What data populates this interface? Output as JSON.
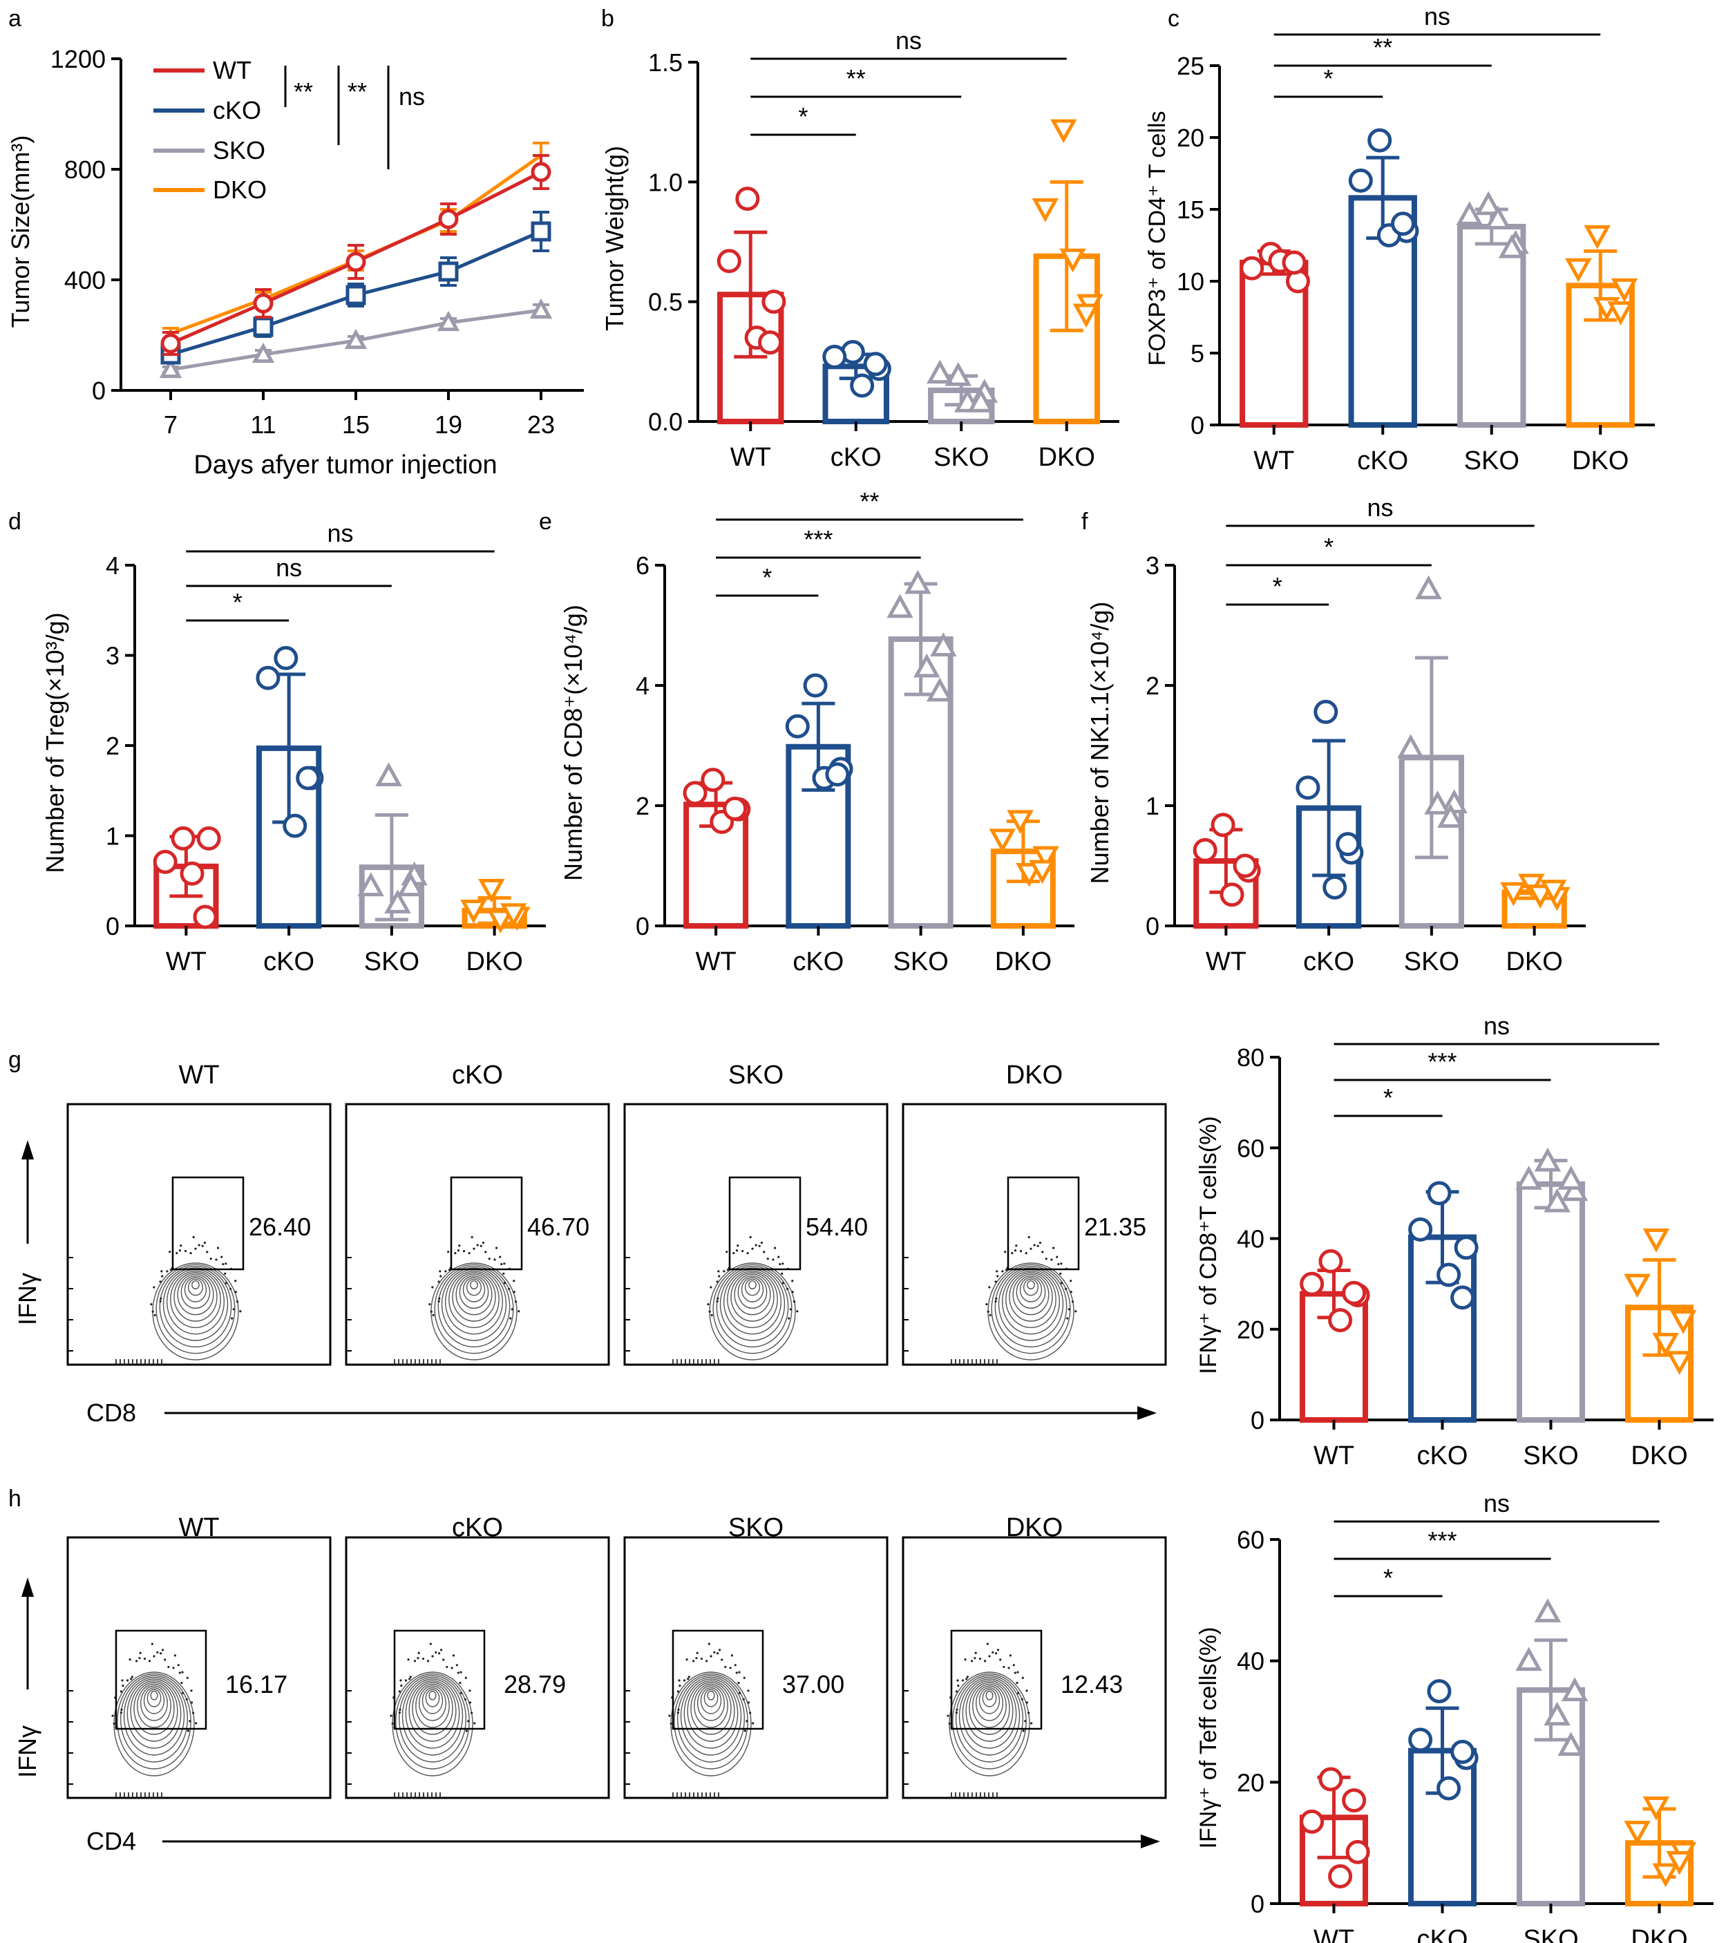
{
  "colors": {
    "WT": "#d62728",
    "cKO": "#1f4e8c",
    "SKO": "#9e9aac",
    "DKO": "#ff8c00",
    "axis": "#000000"
  },
  "chart_data": [
    {
      "id": "a",
      "type": "line",
      "panel_label": "a",
      "xlabel": "Days afyer tumor injection",
      "ylabel": "Tumor Size(mm³)",
      "x": [
        7,
        11,
        15,
        19,
        23
      ],
      "ylim": [
        0,
        1200
      ],
      "yticks": [
        0,
        400,
        800,
        1200
      ],
      "series": [
        {
          "name": "WT",
          "marker": "circle",
          "values": [
            170,
            315,
            465,
            620,
            790
          ],
          "errors": [
            40,
            50,
            60,
            55,
            60
          ]
        },
        {
          "name": "cKO",
          "marker": "square",
          "values": [
            130,
            230,
            345,
            430,
            575
          ],
          "errors": [
            30,
            35,
            40,
            50,
            70
          ]
        },
        {
          "name": "SKO",
          "marker": "triangle",
          "values": [
            75,
            130,
            180,
            245,
            290
          ],
          "errors": [
            10,
            15,
            15,
            15,
            20
          ]
        },
        {
          "name": "DKO",
          "marker": "none",
          "values": [
            205,
            330,
            470,
            615,
            850
          ],
          "errors": [
            20,
            25,
            35,
            40,
            45
          ]
        }
      ],
      "legend": [
        "WT",
        "cKO",
        "SKO",
        "DKO"
      ],
      "sig_labels": [
        "**",
        "**",
        "ns"
      ]
    },
    {
      "id": "b",
      "type": "bar",
      "panel_label": "b",
      "ylabel": "Tumor Weight(g)",
      "categories": [
        "WT",
        "cKO",
        "SKO",
        "DKO"
      ],
      "ylim": [
        0,
        1.5
      ],
      "yticks": [
        "0.0",
        "0.5",
        "1.0",
        "1.5"
      ],
      "values": [
        0.53,
        0.23,
        0.13,
        0.69
      ],
      "errors": [
        0.26,
        0.05,
        0.06,
        0.31
      ],
      "points": [
        [
          0.93,
          0.67,
          0.5,
          0.35,
          0.33
        ],
        [
          0.29,
          0.27,
          0.22,
          0.15,
          0.24
        ],
        [
          0.19,
          0.2,
          0.12,
          0.08,
          0.08
        ],
        [
          1.22,
          0.89,
          0.49,
          0.68,
          0.45
        ]
      ],
      "comparisons": [
        {
          "to": 1,
          "label": "*"
        },
        {
          "to": 2,
          "label": "**"
        },
        {
          "to": 3,
          "label": "ns"
        }
      ]
    },
    {
      "id": "c",
      "type": "bar",
      "panel_label": "c",
      "ylabel": "FOXP3⁺ of CD4⁺ T cells",
      "categories": [
        "WT",
        "cKO",
        "SKO",
        "DKO"
      ],
      "ylim": [
        0,
        25
      ],
      "yticks": [
        "0",
        "5",
        "10",
        "15",
        "20",
        "25"
      ],
      "values": [
        11.3,
        15.8,
        13.8,
        9.7
      ],
      "errors": [
        0.8,
        2.8,
        1.2,
        2.4
      ],
      "points": [
        [
          11.9,
          10.9,
          10.0,
          11.4,
          11.3
        ],
        [
          19.8,
          17.0,
          13.5,
          13.2,
          14.0
        ],
        [
          15.3,
          14.6,
          12.6,
          14.3,
          12.3
        ],
        [
          13.2,
          10.9,
          9.5,
          8.2,
          7.9
        ]
      ],
      "comparisons": [
        {
          "to": 1,
          "label": "*"
        },
        {
          "to": 2,
          "label": "**"
        },
        {
          "to": 3,
          "label": "ns"
        }
      ]
    },
    {
      "id": "d",
      "type": "bar",
      "panel_label": "d",
      "ylabel": "Number of Treg(×10³/g)",
      "categories": [
        "WT",
        "cKO",
        "SKO",
        "DKO"
      ],
      "ylim": [
        0,
        4
      ],
      "yticks": [
        "0",
        "1",
        "2",
        "3",
        "4"
      ],
      "values": [
        0.66,
        1.97,
        0.65,
        0.17
      ],
      "errors": [
        0.33,
        0.82,
        0.58,
        0.14
      ],
      "points": [
        [
          0.97,
          0.71,
          0.97,
          0.58,
          0.1
        ],
        [
          2.97,
          2.75,
          1.64,
          1.11,
          1.64
        ],
        [
          1.66,
          0.44,
          0.56,
          0.25,
          0.44
        ],
        [
          0.41,
          0.18,
          0.1,
          0.07,
          0.14
        ]
      ],
      "comparisons": [
        {
          "to": 1,
          "label": "*"
        },
        {
          "to": 2,
          "label": "ns"
        },
        {
          "to": 3,
          "label": "ns"
        }
      ]
    },
    {
      "id": "e",
      "type": "bar",
      "panel_label": "e",
      "ylabel": "Number of CD8⁺(×10⁴/g)",
      "categories": [
        "WT",
        "cKO",
        "SKO",
        "DKO"
      ],
      "ylim": [
        0,
        6
      ],
      "yticks": [
        "0",
        "2",
        "4",
        "6"
      ],
      "values": [
        2.02,
        2.98,
        4.77,
        1.24
      ],
      "errors": [
        0.36,
        0.72,
        0.92,
        0.5
      ],
      "points": [
        [
          2.43,
          2.21,
          1.94,
          1.73,
          1.95
        ],
        [
          4.0,
          3.32,
          2.61,
          2.46,
          2.52
        ],
        [
          5.69,
          5.29,
          4.65,
          4.3,
          3.9
        ],
        [
          1.76,
          1.45,
          1.16,
          0.88,
          0.93
        ]
      ],
      "comparisons": [
        {
          "to": 1,
          "label": "*"
        },
        {
          "to": 2,
          "label": "***"
        },
        {
          "to": 3,
          "label": "**"
        }
      ]
    },
    {
      "id": "f",
      "type": "bar",
      "panel_label": "f",
      "ylabel": "Number of NK1.1(×10⁴/g)",
      "categories": [
        "WT",
        "cKO",
        "SKO",
        "DKO"
      ],
      "ylim": [
        0,
        3
      ],
      "yticks": [
        "0",
        "1",
        "2",
        "3"
      ],
      "values": [
        0.54,
        0.98,
        1.4,
        0.28
      ],
      "errors": [
        0.26,
        0.56,
        0.83,
        0.05
      ],
      "points": [
        [
          0.84,
          0.63,
          0.46,
          0.26,
          0.5
        ],
        [
          1.78,
          1.15,
          0.61,
          0.32,
          0.68
        ],
        [
          2.8,
          1.48,
          1.02,
          1.01,
          0.9
        ],
        [
          0.35,
          0.28,
          0.24,
          0.26,
          0.3
        ]
      ],
      "comparisons": [
        {
          "to": 1,
          "label": "*"
        },
        {
          "to": 2,
          "label": "*"
        },
        {
          "to": 3,
          "label": "ns"
        }
      ]
    },
    {
      "id": "g",
      "type": "bar",
      "panel_label": "",
      "ylabel": "IFNγ⁺ of CD8⁺T cells(%)",
      "categories": [
        "WT",
        "cKO",
        "SKO",
        "DKO"
      ],
      "ylim": [
        0,
        80
      ],
      "yticks": [
        "0",
        "20",
        "40",
        "60",
        "80"
      ],
      "values": [
        27.8,
        40.3,
        52.0,
        24.8
      ],
      "errors": [
        5.2,
        10.0,
        5.2,
        10.5
      ],
      "points": [
        [
          35.0,
          30.0,
          27.5,
          22.0,
          28.0
        ],
        [
          50.0,
          42.0,
          38.0,
          32.0,
          27.0
        ],
        [
          57.0,
          53.0,
          50.5,
          48.0,
          53.0
        ],
        [
          40.0,
          30.0,
          22.0,
          17.0,
          13.0
        ]
      ],
      "comparisons": [
        {
          "to": 1,
          "label": "*"
        },
        {
          "to": 2,
          "label": "***"
        },
        {
          "to": 3,
          "label": "ns"
        }
      ]
    },
    {
      "id": "h",
      "type": "bar",
      "panel_label": "",
      "ylabel": "IFNγ⁺ of Teff cells(%)",
      "categories": [
        "WT",
        "cKO",
        "SKO",
        "DKO"
      ],
      "ylim": [
        0,
        60
      ],
      "yticks": [
        "0",
        "20",
        "40",
        "60"
      ],
      "values": [
        14.2,
        25.2,
        35.2,
        10.0
      ],
      "errors": [
        6.6,
        7.0,
        8.2,
        5.6
      ],
      "points": [
        [
          20.5,
          13.5,
          8.5,
          4.5,
          17.0
        ],
        [
          35.0,
          27.0,
          24.0,
          19.0,
          25.0
        ],
        [
          48.0,
          40.0,
          35.0,
          31.0,
          26.0
        ],
        [
          16.0,
          12.0,
          8.5,
          5.0,
          7.0
        ]
      ],
      "comparisons": [
        {
          "to": 1,
          "label": "*"
        },
        {
          "to": 2,
          "label": "***"
        },
        {
          "to": 3,
          "label": "ns"
        }
      ]
    }
  ],
  "flow_g": {
    "panel_label": "g",
    "y_axis_label": "IFNγ",
    "x_axis_label": "CD8",
    "plots": [
      {
        "title": "WT",
        "value": "26.40"
      },
      {
        "title": "cKO",
        "value": "46.70"
      },
      {
        "title": "SKO",
        "value": "54.40"
      },
      {
        "title": "DKO",
        "value": "21.35"
      }
    ]
  },
  "flow_h": {
    "panel_label": "h",
    "y_axis_label": "IFNγ",
    "x_axis_label": "CD4",
    "plots": [
      {
        "title": "WT",
        "value": "16.17"
      },
      {
        "title": "cKO",
        "value": "28.79"
      },
      {
        "title": "SKO",
        "value": "37.00"
      },
      {
        "title": "DKO",
        "value": "12.43"
      }
    ]
  }
}
